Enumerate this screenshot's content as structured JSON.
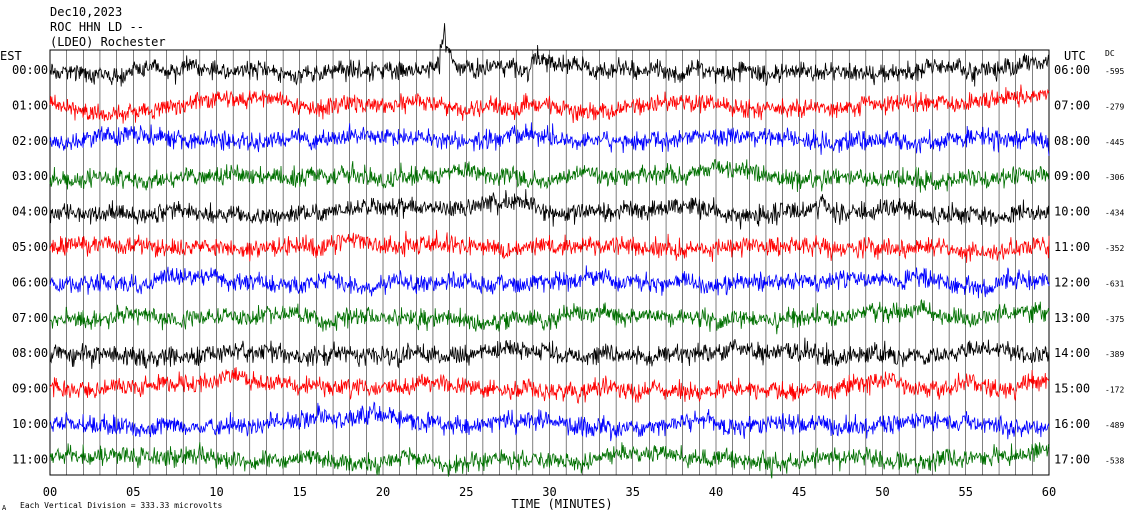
{
  "header": {
    "date": "Dec10,2023",
    "station": "ROC HHN LD --",
    "network": "(LDEO) Rochester"
  },
  "labels": {
    "left_zone": "EST",
    "right_zone": "UTC",
    "dc": "DC",
    "x_axis": "TIME (MINUTES)",
    "scale_note": "Each Vertical Division =  333.33 microvolts",
    "scale_mark": "A"
  },
  "colors": {
    "trace_cycle": [
      "#000000",
      "#ff0000",
      "#0000ff",
      "#007000"
    ],
    "grid": "#000000",
    "background": "#ffffff"
  },
  "chart_data": {
    "type": "line",
    "description_type": "helicorder",
    "x_label": "TIME (MINUTES)",
    "xlim": [
      0,
      60
    ],
    "x_ticks": [
      "00",
      "05",
      "10",
      "15",
      "20",
      "25",
      "30",
      "35",
      "40",
      "45",
      "50",
      "55",
      "60"
    ],
    "rows": [
      {
        "est": "00:00",
        "utc": "06:00",
        "dc": "-595",
        "color": "#000000"
      },
      {
        "est": "01:00",
        "utc": "07:00",
        "dc": "-279",
        "color": "#ff0000"
      },
      {
        "est": "02:00",
        "utc": "08:00",
        "dc": "-445",
        "color": "#0000ff"
      },
      {
        "est": "03:00",
        "utc": "09:00",
        "dc": "-306",
        "color": "#007000"
      },
      {
        "est": "04:00",
        "utc": "10:00",
        "dc": "-434",
        "color": "#000000"
      },
      {
        "est": "05:00",
        "utc": "11:00",
        "dc": "-352",
        "color": "#ff0000"
      },
      {
        "est": "06:00",
        "utc": "12:00",
        "dc": "-631",
        "color": "#0000ff"
      },
      {
        "est": "07:00",
        "utc": "13:00",
        "dc": "-375",
        "color": "#007000"
      },
      {
        "est": "08:00",
        "utc": "14:00",
        "dc": "-389",
        "color": "#000000"
      },
      {
        "est": "09:00",
        "utc": "15:00",
        "dc": "-172",
        "color": "#ff0000"
      },
      {
        "est": "10:00",
        "utc": "16:00",
        "dc": "-489",
        "color": "#0000ff"
      },
      {
        "est": "11:00",
        "utc": "17:00",
        "dc": "-538",
        "color": "#007000"
      }
    ],
    "events": [
      {
        "row": 0,
        "minute": 23.7,
        "amplitude": "large"
      },
      {
        "row": 0,
        "minute": 29.2,
        "amplitude": "medium"
      },
      {
        "row": 4,
        "minute": 46.5,
        "amplitude": "medium"
      }
    ],
    "grid": true
  }
}
